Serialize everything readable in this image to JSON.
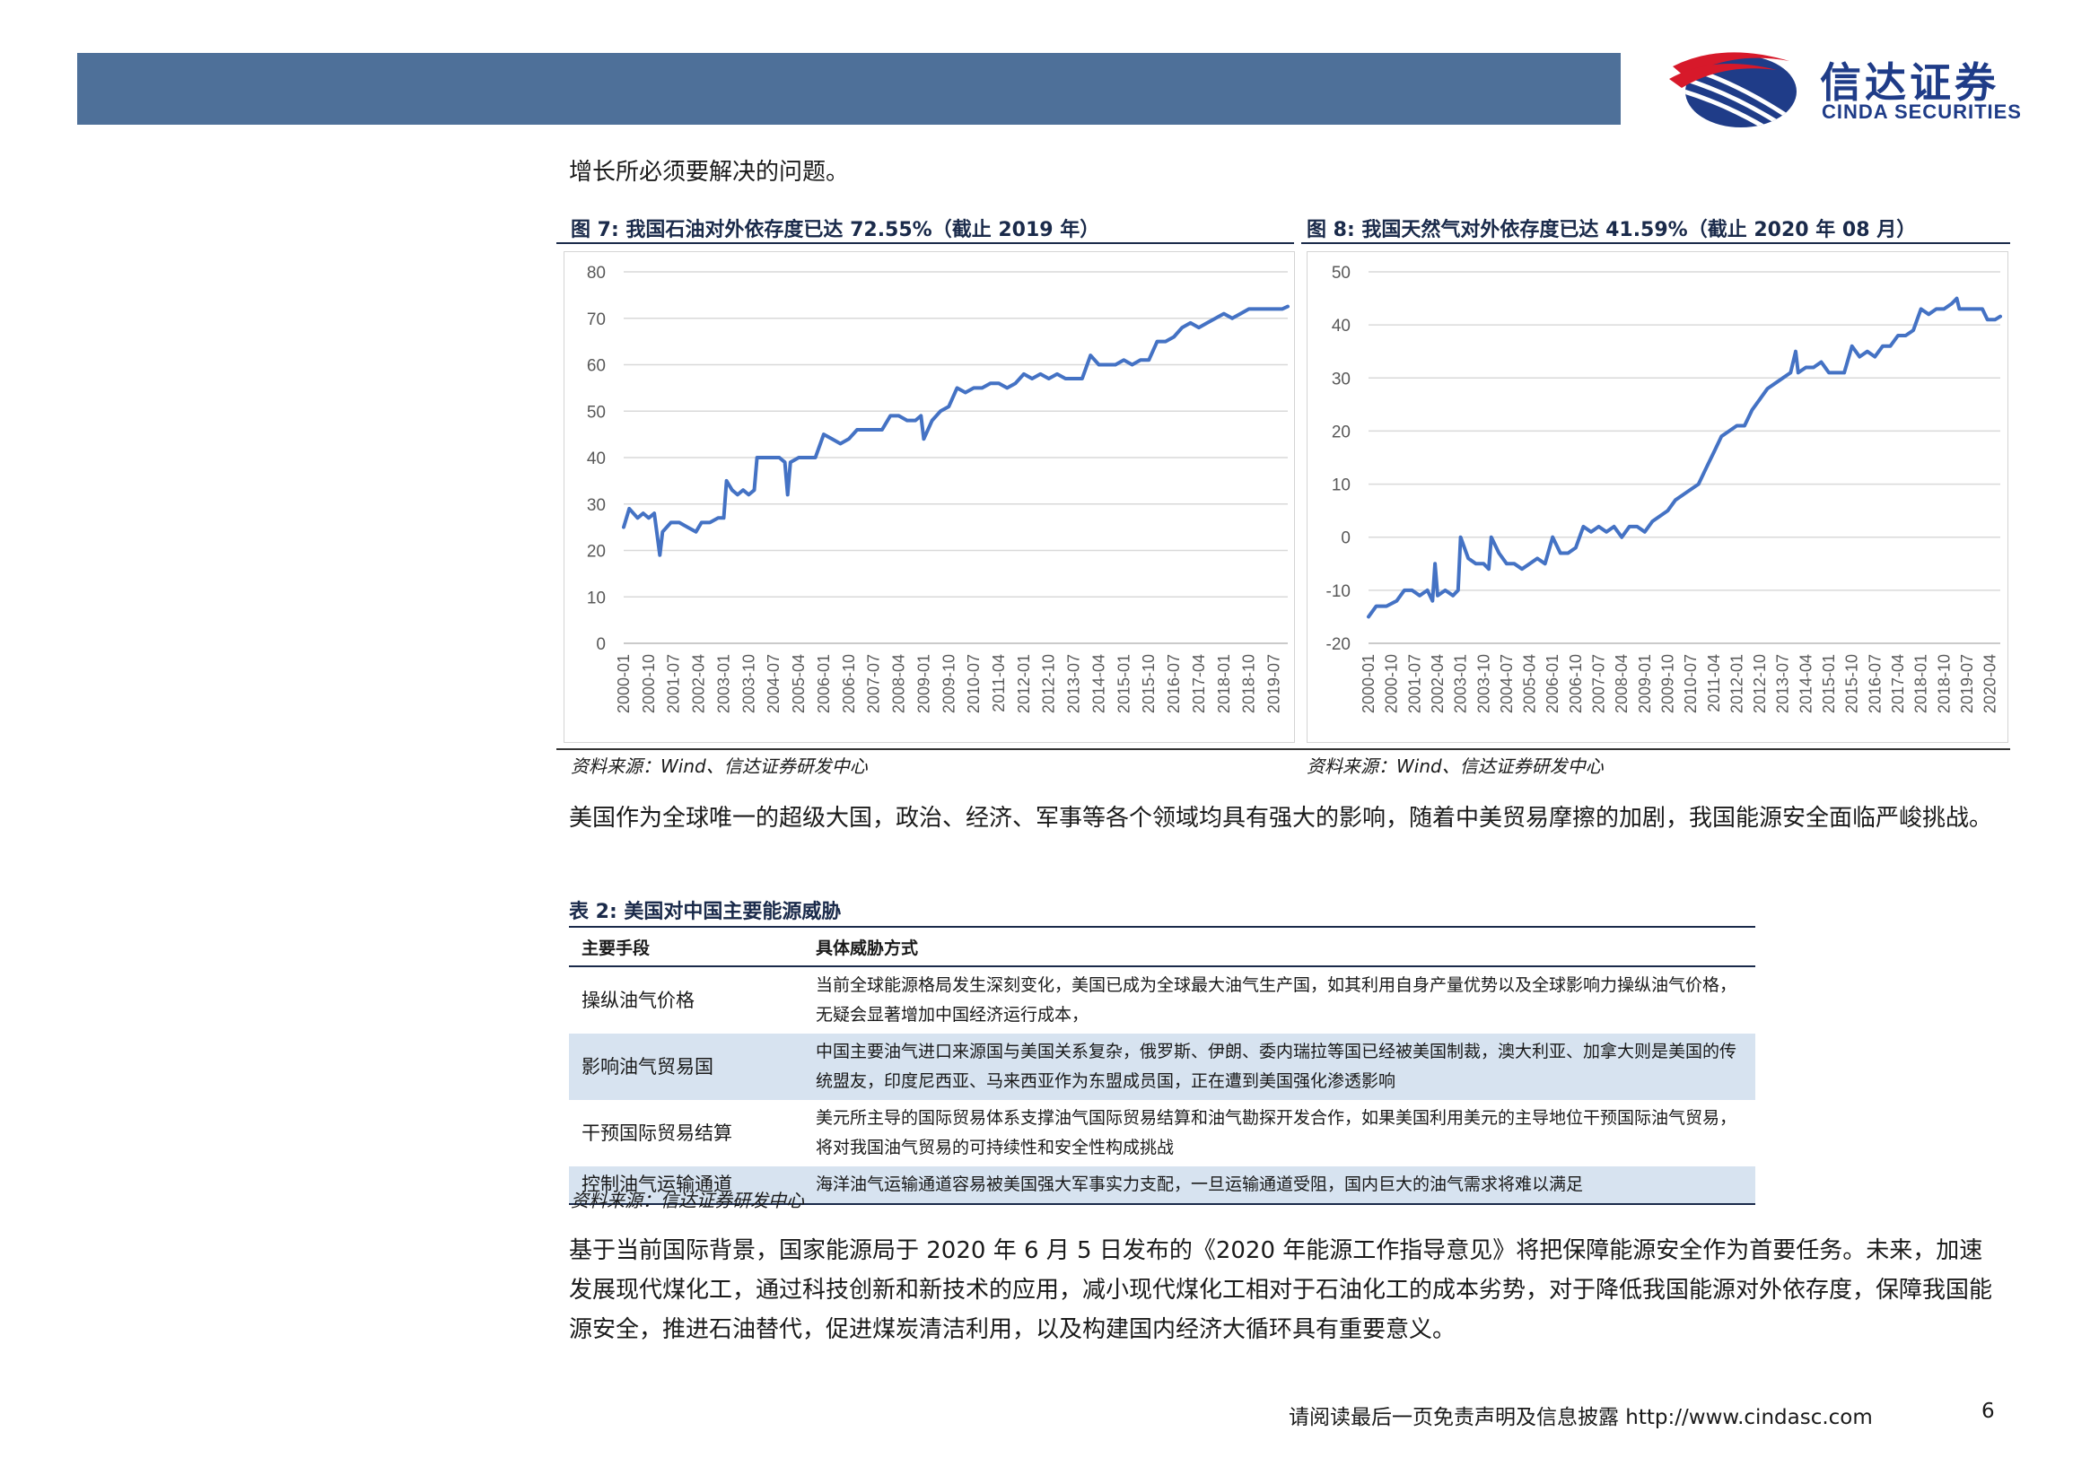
{
  "header": {
    "logo_cn": "信达证券",
    "logo_en": "CINDA SECURITIES",
    "colors": {
      "bar": "#4e7099",
      "logo_blue": "#1f3c88",
      "logo_red": "#d7192a"
    }
  },
  "intro_text": "增长所必须要解决的问题。",
  "figure7": {
    "title": "图 7: 我国石油对外依存度已达 72.55%（截止 2019 年）",
    "source": "资料来源：Wind、信达证券研发中心"
  },
  "figure8": {
    "title": "图 8: 我国天然气对外依存度已达 41.59%（截止 2020 年 08 月）",
    "source": "资料来源：Wind、信达证券研发中心"
  },
  "paragraph1": "美国作为全球唯一的超级大国，政治、经济、军事等各个领域均具有强大的影响，随着中美贸易摩擦的加剧，我国能源安全面临严峻挑战。",
  "table2": {
    "title": "表 2: 美国对中国主要能源威胁",
    "headers": [
      "主要手段",
      "具体威胁方式"
    ],
    "rows": [
      {
        "means": "操纵油气价格",
        "desc": "当前全球能源格局发生深刻变化，美国已成为全球最大油气生产国，如其利用自身产量优势以及全球影响力操纵油气价格，无疑会显著增加中国经济运行成本，"
      },
      {
        "means": "影响油气贸易国",
        "desc": "中国主要油气进口来源国与美国关系复杂，俄罗斯、伊朗、委内瑞拉等国已经被美国制裁，澳大利亚、加拿大则是美国的传统盟友，印度尼西亚、马来西亚作为东盟成员国，正在遭到美国强化渗透影响"
      },
      {
        "means": "干预国际贸易结算",
        "desc": "美元所主导的国际贸易体系支撑油气国际贸易结算和油气勘探开发合作，如果美国利用美元的主导地位干预国际油气贸易，将对我国油气贸易的可持续性和安全性构成挑战"
      },
      {
        "means": "控制油气运输通道",
        "desc": "海洋油气运输通道容易被美国强大军事实力支配，一旦运输通道受阻，国内巨大的油气需求将难以满足"
      }
    ],
    "source": "资料来源：信达证券研发中心"
  },
  "paragraph2": "基于当前国际背景，国家能源局于 2020 年 6 月 5 日发布的《2020 年能源工作指导意见》将把保障能源安全作为首要任务。未来，加速发展现代煤化工，通过科技创新和新技术的应用，减小现代煤化工相对于石油化工的成本劣势，对于降低我国能源对外依存度，保障我国能源安全，推进石油替代，促进煤炭清洁利用，以及构建国内经济大循环具有重要意义。",
  "footer": {
    "disclaimer": "请阅读最后一页免责声明及信息披露 http://www.cindasc.com",
    "page": "6"
  },
  "chart_data": [
    {
      "type": "line",
      "title": "图 7: 我国石油对外依存度已达 72.55%（截止 2019 年）",
      "color": "#4472c4",
      "ylim": [
        0,
        80
      ],
      "yticks": [
        0,
        10,
        20,
        30,
        40,
        50,
        60,
        70,
        80
      ],
      "grid": true,
      "legend": "none",
      "x_tick_labels": [
        "2000-01",
        "2000-10",
        "2001-07",
        "2002-04",
        "2003-01",
        "2003-10",
        "2004-07",
        "2005-04",
        "2006-01",
        "2006-10",
        "2007-07",
        "2008-04",
        "2009-01",
        "2009-10",
        "2010-07",
        "2011-04",
        "2012-01",
        "2012-10",
        "2013-07",
        "2014-04",
        "2015-01",
        "2015-10",
        "2016-07",
        "2017-04",
        "2018-01",
        "2018-10",
        "2019-07"
      ],
      "x_start": "2000-01",
      "x_end": "2019-12",
      "points": [
        [
          "2000-01",
          25
        ],
        [
          "2000-03",
          29
        ],
        [
          "2000-06",
          27
        ],
        [
          "2000-08",
          28
        ],
        [
          "2000-10",
          27
        ],
        [
          "2000-12",
          28
        ],
        [
          "2001-02",
          19
        ],
        [
          "2001-03",
          24
        ],
        [
          "2001-06",
          26
        ],
        [
          "2001-09",
          26
        ],
        [
          "2001-12",
          25
        ],
        [
          "2002-03",
          24
        ],
        [
          "2002-05",
          26
        ],
        [
          "2002-08",
          26
        ],
        [
          "2002-11",
          27
        ],
        [
          "2003-01",
          27
        ],
        [
          "2003-02",
          35
        ],
        [
          "2003-04",
          33
        ],
        [
          "2003-06",
          32
        ],
        [
          "2003-08",
          33
        ],
        [
          "2003-10",
          32
        ],
        [
          "2003-12",
          33
        ],
        [
          "2004-01",
          40
        ],
        [
          "2004-03",
          40
        ],
        [
          "2004-06",
          40
        ],
        [
          "2004-09",
          40
        ],
        [
          "2004-11",
          39
        ],
        [
          "2004-12",
          32
        ],
        [
          "2005-01",
          39
        ],
        [
          "2005-04",
          40
        ],
        [
          "2005-07",
          40
        ],
        [
          "2005-10",
          40
        ],
        [
          "2006-01",
          45
        ],
        [
          "2006-04",
          44
        ],
        [
          "2006-07",
          43
        ],
        [
          "2006-10",
          44
        ],
        [
          "2007-01",
          46
        ],
        [
          "2007-04",
          46
        ],
        [
          "2007-07",
          46
        ],
        [
          "2007-10",
          46
        ],
        [
          "2008-01",
          49
        ],
        [
          "2008-04",
          49
        ],
        [
          "2008-07",
          48
        ],
        [
          "2008-10",
          48
        ],
        [
          "2008-12",
          49
        ],
        [
          "2009-01",
          44
        ],
        [
          "2009-04",
          48
        ],
        [
          "2009-07",
          50
        ],
        [
          "2009-10",
          51
        ],
        [
          "2010-01",
          55
        ],
        [
          "2010-04",
          54
        ],
        [
          "2010-07",
          55
        ],
        [
          "2010-10",
          55
        ],
        [
          "2011-01",
          56
        ],
        [
          "2011-04",
          56
        ],
        [
          "2011-07",
          55
        ],
        [
          "2011-10",
          56
        ],
        [
          "2012-01",
          58
        ],
        [
          "2012-04",
          57
        ],
        [
          "2012-07",
          58
        ],
        [
          "2012-10",
          57
        ],
        [
          "2013-01",
          58
        ],
        [
          "2013-04",
          57
        ],
        [
          "2013-07",
          57
        ],
        [
          "2013-10",
          57
        ],
        [
          "2014-01",
          62
        ],
        [
          "2014-04",
          60
        ],
        [
          "2014-07",
          60
        ],
        [
          "2014-10",
          60
        ],
        [
          "2015-01",
          61
        ],
        [
          "2015-04",
          60
        ],
        [
          "2015-07",
          61
        ],
        [
          "2015-10",
          61
        ],
        [
          "2016-01",
          65
        ],
        [
          "2016-04",
          65
        ],
        [
          "2016-07",
          66
        ],
        [
          "2016-10",
          68
        ],
        [
          "2017-01",
          69
        ],
        [
          "2017-04",
          68
        ],
        [
          "2017-07",
          69
        ],
        [
          "2017-10",
          70
        ],
        [
          "2018-01",
          71
        ],
        [
          "2018-04",
          70
        ],
        [
          "2018-07",
          71
        ],
        [
          "2018-10",
          72
        ],
        [
          "2019-01",
          72
        ],
        [
          "2019-04",
          72
        ],
        [
          "2019-07",
          72
        ],
        [
          "2019-10",
          72
        ],
        [
          "2019-12",
          72.55
        ]
      ]
    },
    {
      "type": "line",
      "title": "图 8: 我国天然气对外依存度已达 41.59%（截止 2020 年 08 月）",
      "color": "#4472c4",
      "ylim": [
        -20,
        50
      ],
      "yticks": [
        -20,
        -10,
        0,
        10,
        20,
        30,
        40,
        50
      ],
      "grid": true,
      "legend": "none",
      "x_tick_labels": [
        "2000-01",
        "2000-10",
        "2001-07",
        "2002-04",
        "2003-01",
        "2003-10",
        "2004-07",
        "2005-04",
        "2006-01",
        "2006-10",
        "2007-07",
        "2008-04",
        "2009-01",
        "2009-10",
        "2010-07",
        "2011-04",
        "2012-01",
        "2012-10",
        "2013-07",
        "2014-04",
        "2015-01",
        "2015-10",
        "2016-07",
        "2017-04",
        "2018-01",
        "2018-10",
        "2019-07",
        "2020-04"
      ],
      "x_start": "2000-01",
      "x_end": "2020-08",
      "points": [
        [
          "2000-01",
          -15
        ],
        [
          "2000-04",
          -13
        ],
        [
          "2000-08",
          -13
        ],
        [
          "2000-12",
          -12
        ],
        [
          "2001-03",
          -10
        ],
        [
          "2001-06",
          -10
        ],
        [
          "2001-09",
          -11
        ],
        [
          "2001-12",
          -10
        ],
        [
          "2002-02",
          -12
        ],
        [
          "2002-03",
          -5
        ],
        [
          "2002-04",
          -11
        ],
        [
          "2002-07",
          -10
        ],
        [
          "2002-10",
          -11
        ],
        [
          "2002-12",
          -10
        ],
        [
          "2003-01",
          0
        ],
        [
          "2003-04",
          -4
        ],
        [
          "2003-07",
          -5
        ],
        [
          "2003-10",
          -5
        ],
        [
          "2003-12",
          -6
        ],
        [
          "2004-01",
          0
        ],
        [
          "2004-04",
          -3
        ],
        [
          "2004-07",
          -5
        ],
        [
          "2004-10",
          -5
        ],
        [
          "2005-01",
          -6
        ],
        [
          "2005-04",
          -5
        ],
        [
          "2005-07",
          -4
        ],
        [
          "2005-10",
          -5
        ],
        [
          "2006-01",
          0
        ],
        [
          "2006-04",
          -3
        ],
        [
          "2006-07",
          -3
        ],
        [
          "2006-10",
          -2
        ],
        [
          "2007-01",
          2
        ],
        [
          "2007-04",
          1
        ],
        [
          "2007-07",
          2
        ],
        [
          "2007-10",
          1
        ],
        [
          "2008-01",
          2
        ],
        [
          "2008-04",
          0
        ],
        [
          "2008-07",
          2
        ],
        [
          "2008-10",
          2
        ],
        [
          "2009-01",
          1
        ],
        [
          "2009-04",
          3
        ],
        [
          "2009-07",
          4
        ],
        [
          "2009-10",
          5
        ],
        [
          "2010-01",
          7
        ],
        [
          "2010-04",
          8
        ],
        [
          "2010-07",
          9
        ],
        [
          "2010-10",
          10
        ],
        [
          "2011-01",
          13
        ],
        [
          "2011-04",
          16
        ],
        [
          "2011-07",
          19
        ],
        [
          "2011-10",
          20
        ],
        [
          "2012-01",
          21
        ],
        [
          "2012-04",
          21
        ],
        [
          "2012-07",
          24
        ],
        [
          "2012-10",
          26
        ],
        [
          "2013-01",
          28
        ],
        [
          "2013-04",
          29
        ],
        [
          "2013-07",
          30
        ],
        [
          "2013-10",
          31
        ],
        [
          "2013-12",
          35
        ],
        [
          "2014-01",
          31
        ],
        [
          "2014-04",
          32
        ],
        [
          "2014-07",
          32
        ],
        [
          "2014-10",
          33
        ],
        [
          "2015-01",
          31
        ],
        [
          "2015-04",
          31
        ],
        [
          "2015-07",
          31
        ],
        [
          "2015-10",
          36
        ],
        [
          "2016-01",
          34
        ],
        [
          "2016-04",
          35
        ],
        [
          "2016-07",
          34
        ],
        [
          "2016-10",
          36
        ],
        [
          "2017-01",
          36
        ],
        [
          "2017-04",
          38
        ],
        [
          "2017-07",
          38
        ],
        [
          "2017-10",
          39
        ],
        [
          "2018-01",
          43
        ],
        [
          "2018-04",
          42
        ],
        [
          "2018-07",
          43
        ],
        [
          "2018-10",
          43
        ],
        [
          "2019-01",
          44
        ],
        [
          "2019-03",
          45
        ],
        [
          "2019-04",
          43
        ],
        [
          "2019-07",
          43
        ],
        [
          "2019-10",
          43
        ],
        [
          "2020-01",
          43
        ],
        [
          "2020-03",
          41
        ],
        [
          "2020-06",
          41
        ],
        [
          "2020-08",
          41.59
        ]
      ]
    }
  ]
}
